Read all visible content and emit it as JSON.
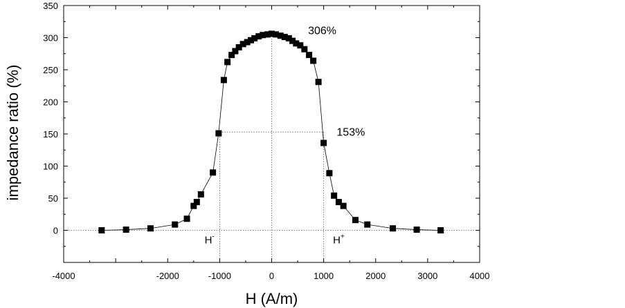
{
  "chart_data": {
    "type": "scatter",
    "xlabel": "H (A/m)",
    "ylabel": "impedance ratio (%)",
    "xlim": [
      -4000,
      4000
    ],
    "ylim": [
      -50,
      350
    ],
    "xticks": [
      -4000,
      -3000,
      -2000,
      -1000,
      0,
      1000,
      2000,
      3000,
      4000
    ],
    "xtick_labels": [
      "-4000",
      "",
      "-2000",
      "-1000",
      "0",
      "1000",
      "2000",
      "3000",
      "4000"
    ],
    "yticks": [
      0,
      50,
      100,
      150,
      200,
      250,
      300,
      350
    ],
    "ytick_labels": [
      "0",
      "50",
      "100",
      "150",
      "200",
      "250",
      "300",
      "350"
    ],
    "grid": false,
    "series": [
      {
        "marker": "square",
        "line": "connected",
        "color": "#000000",
        "points": [
          [
            -3270,
            0
          ],
          [
            -2800,
            1
          ],
          [
            -2330,
            3
          ],
          [
            -1860,
            9
          ],
          [
            -1630,
            18
          ],
          [
            -1500,
            38
          ],
          [
            -1440,
            44
          ],
          [
            -1360,
            56
          ],
          [
            -1130,
            90
          ],
          [
            -1020,
            151
          ],
          [
            -920,
            234
          ],
          [
            -850,
            262
          ],
          [
            -770,
            273
          ],
          [
            -700,
            279
          ],
          [
            -630,
            285
          ],
          [
            -550,
            290
          ],
          [
            -470,
            293
          ],
          [
            -400,
            296
          ],
          [
            -330,
            299
          ],
          [
            -250,
            302
          ],
          [
            -170,
            304
          ],
          [
            -80,
            305
          ],
          [
            0,
            306
          ],
          [
            80,
            305
          ],
          [
            170,
            303
          ],
          [
            250,
            301
          ],
          [
            330,
            299
          ],
          [
            400,
            295
          ],
          [
            470,
            291
          ],
          [
            550,
            288
          ],
          [
            630,
            282
          ],
          [
            720,
            273
          ],
          [
            800,
            264
          ],
          [
            900,
            231
          ],
          [
            1000,
            136
          ],
          [
            1110,
            89
          ],
          [
            1200,
            54
          ],
          [
            1290,
            44
          ],
          [
            1380,
            38
          ],
          [
            1610,
            16
          ],
          [
            1840,
            9
          ],
          [
            2330,
            3
          ],
          [
            2790,
            1
          ],
          [
            3250,
            0
          ]
        ]
      }
    ],
    "guides": {
      "vertical_x": [
        -1000,
        0,
        1000
      ],
      "horizontal_y": [
        0,
        153,
        306
      ]
    },
    "annotations": [
      {
        "text": "306%",
        "x": 700,
        "y": 312
      },
      {
        "text": "153%",
        "x": 1250,
        "y": 154
      },
      {
        "text": "H",
        "sup": "-",
        "x": -1290,
        "y": -15
      },
      {
        "text": "H",
        "sup": "+",
        "x": 1180,
        "y": -15
      }
    ]
  }
}
